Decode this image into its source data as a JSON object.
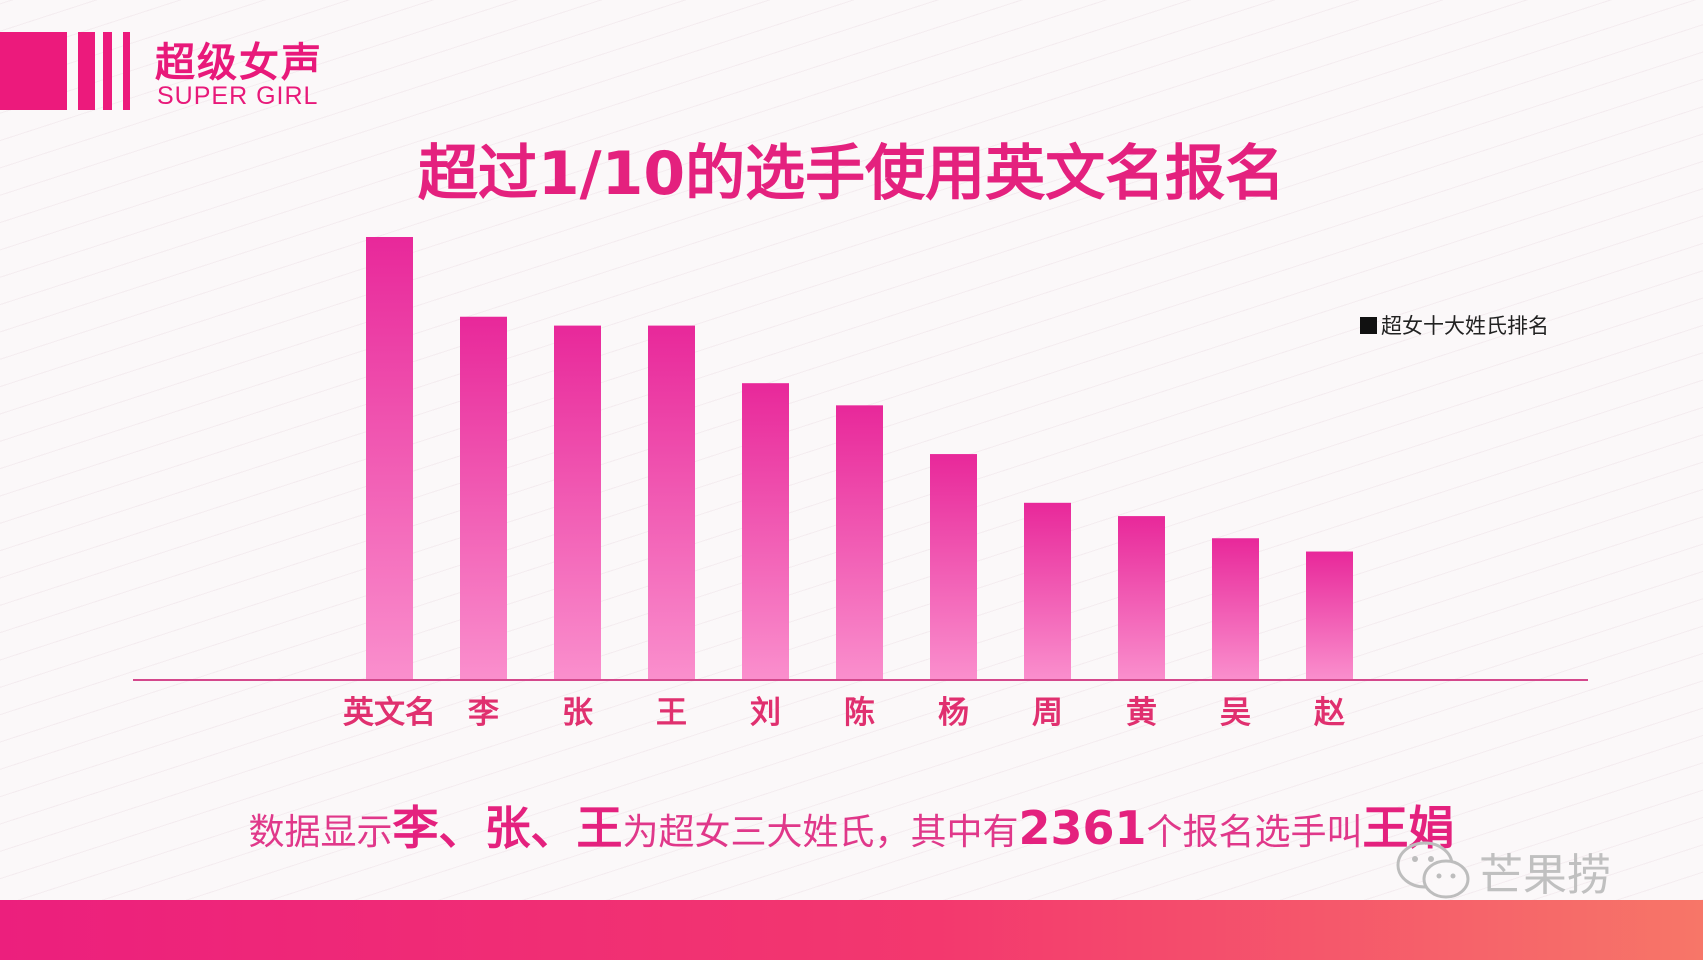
{
  "brand": {
    "name_cn": "超级女声",
    "name_en": "SUPER GIRL",
    "accent": "#ec1a7c"
  },
  "headline": "超过1/10的选手使用英文名报名",
  "caption": {
    "parts": [
      {
        "text": "数据显示",
        "emphasis": false
      },
      {
        "text": "李、张、王",
        "emphasis": true
      },
      {
        "text": "为超女三大姓氏，其中有",
        "emphasis": false
      },
      {
        "text": "2361",
        "emphasis": true
      },
      {
        "text": "个报名选手叫",
        "emphasis": false
      },
      {
        "text": "王娟",
        "emphasis": true
      }
    ]
  },
  "watermark": {
    "icon": "wechat-icon",
    "text": "芒果捞"
  },
  "chart_data": {
    "type": "bar",
    "title": "超过1/10的选手使用英文名报名",
    "categories": [
      "英文名",
      "李",
      "张",
      "王",
      "刘",
      "陈",
      "杨",
      "周",
      "黄",
      "吴",
      "赵"
    ],
    "series": [
      {
        "name": "超女十大姓氏排名",
        "values": [
          100,
          82,
          80,
          80,
          67,
          62,
          51,
          40,
          37,
          32,
          29
        ]
      }
    ],
    "xlabel": "",
    "ylabel": "",
    "ylim": [
      0,
      100
    ],
    "grid": false,
    "legend": "right",
    "colors": {
      "bar_top": "#e8289a",
      "bar_bottom": "#fa8fcd",
      "axis": "#d4488c",
      "tick_label": "#e0306f"
    }
  }
}
